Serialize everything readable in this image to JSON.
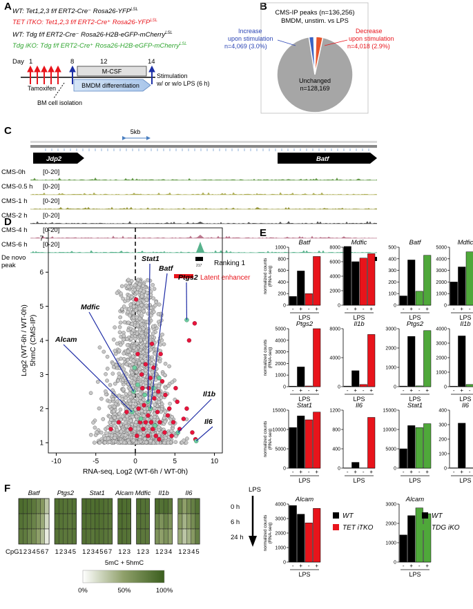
{
  "panel_labels": [
    "A",
    "B",
    "C",
    "D",
    "E",
    "F"
  ],
  "panelA": {
    "genotypes": [
      {
        "text": "WT: Tet1,2,3 f/f ERT2-Cre⁻ Rosa26-YFP",
        "sup": "LSL",
        "color": "#000000"
      },
      {
        "text": "TET iTKO: Tet1,2,3 f/f ERT2-Cre⁺ Rosa26-YFP",
        "sup": "LSL",
        "color": "#e8141b"
      },
      {
        "text": "WT: Tdg f/f ERT2-Cre⁻ Rosa26-H2B-eGFP-mCherry",
        "sup": "LSL",
        "color": "#000000"
      },
      {
        "text": "Tdg iKO: Tdg f/f ERT2-Cre⁺ Rosa26-H2B-eGFP-mCherry",
        "sup": "LSL",
        "color": "#2fa52f"
      }
    ],
    "day_label": "Day",
    "days": [
      "1",
      "8",
      "12",
      "14"
    ],
    "tamoxifen": "Tamoxifen",
    "mcsf": "M-CSF",
    "bmdm": "BMDM differentiation",
    "stimulation_line1": "Stimulation",
    "stimulation_line2": "w/ or w/o LPS (6 h)",
    "bm_isolation": "BM cell isolation"
  },
  "panelB": {
    "title_line1": "CMS-IP peaks (n=136,256)",
    "title_line2": "BMDM, unstim. vs LPS",
    "increase_line1": "Increase",
    "increase_line2": "upon stimulation",
    "increase_line3": "n=4,069 (3.0%)",
    "decrease_line1": "Decrease",
    "decrease_line2": "upon stimulation",
    "decrease_line3": "n=4,018 (2.9%)",
    "unchanged_line1": "Unchanged",
    "unchanged_line2": "n=128,169",
    "colors": {
      "increase": "#3a63c4",
      "decrease": "#e8542a",
      "unchanged": "#a6a6a6"
    }
  },
  "panelC": {
    "scale": "5kb",
    "genes": [
      "Jdp2",
      "Batf"
    ],
    "tracks": [
      {
        "name": "CMS-0h",
        "range": "[0-20]",
        "color": "#4a8a2a"
      },
      {
        "name": "CMS-0.5 h",
        "range": "[0-20]",
        "color": "#a0a038"
      },
      {
        "name": "CMS-1 h",
        "range": "[0-20]",
        "color": "#8a8a20"
      },
      {
        "name": "CMS-2 h",
        "range": "[0-20]",
        "color": "#333333"
      },
      {
        "name": "CMS-4 h",
        "range": "[0-20]",
        "color": "#b0607a"
      },
      {
        "name": "CMS-6 h",
        "range": "[0-20]",
        "color": "#3aa578"
      }
    ],
    "denovo_line1": "De novo",
    "denovo_line2": "peak",
    "peak_id": "217",
    "ranking": "Ranking 1",
    "latent": "Latent enhancer"
  },
  "chart_data": [
    {
      "type": "scatter",
      "panel": "D",
      "xlabel": "RNA-seq, Log2 (WT-6h / WT-0h)",
      "ylabel_line1": "Log2 (WT-6h / WT-0h)",
      "ylabel_line2": "5hmC (CMS-IP)",
      "xlim": [
        -11,
        11
      ],
      "ylim": [
        0.7,
        7.3
      ],
      "xticks": [
        "-10",
        "-5",
        "0",
        "5",
        "10"
      ],
      "yticks": [
        "1",
        "2",
        "3",
        "4",
        "5",
        "6",
        "7"
      ],
      "highlighted_genes": [
        {
          "name": "Stat1",
          "x": 1.6,
          "y": 2.2
        },
        {
          "name": "Batf",
          "x": 1.9,
          "y": 2.0
        },
        {
          "name": "Ptgs2",
          "x": 6.5,
          "y": 4.6
        },
        {
          "name": "Mdfic",
          "x": -0.2,
          "y": 2.5
        },
        {
          "name": "Alcam",
          "x": -0.4,
          "y": 1.9
        },
        {
          "name": "Il1b",
          "x": 5.4,
          "y": 1.3
        },
        {
          "name": "Il6",
          "x": 7.7,
          "y": 1.05
        }
      ],
      "red_points": [
        [
          0.6,
          1.6
        ],
        [
          1.1,
          2.1
        ],
        [
          1.6,
          1.8
        ],
        [
          2.2,
          1.4
        ],
        [
          2.8,
          1.9
        ],
        [
          0.9,
          2.6
        ],
        [
          1.9,
          2.9
        ],
        [
          2.4,
          2.3
        ],
        [
          3.1,
          1.6
        ],
        [
          3.8,
          2.4
        ],
        [
          4.1,
          1.8
        ],
        [
          5.1,
          2.6
        ],
        [
          4.6,
          1.2
        ],
        [
          6.1,
          1.7
        ],
        [
          7.2,
          1.3
        ],
        [
          7.6,
          1.1
        ],
        [
          1.3,
          3.3
        ],
        [
          2.1,
          3.9
        ],
        [
          3.2,
          3.6
        ],
        [
          6.8,
          4.0
        ],
        [
          0.4,
          2.0
        ],
        [
          1.6,
          1.2
        ],
        [
          2.6,
          1.2
        ],
        [
          3.4,
          2.8
        ],
        [
          5.6,
          1.4
        ],
        [
          -0.6,
          1.4
        ],
        [
          -1.1,
          1.9
        ],
        [
          -3.1,
          1.4
        ],
        [
          -2.1,
          1.6
        ],
        [
          0.2,
          1.2
        ],
        [
          1.0,
          1.4
        ],
        [
          1.3,
          1.6
        ],
        [
          2.0,
          1.6
        ],
        [
          2.9,
          2.5
        ],
        [
          4.3,
          2.0
        ],
        [
          3.7,
          1.3
        ],
        [
          0.8,
          3.0
        ],
        [
          2.3,
          3.2
        ],
        [
          6.5,
          2.0
        ],
        [
          7.5,
          4.5
        ],
        [
          0.1,
          5.2
        ],
        [
          0.3,
          3.6
        ],
        [
          1.7,
          2.6
        ],
        [
          3.0,
          1.1
        ],
        [
          4.8,
          1.6
        ],
        [
          5.3,
          2.2
        ]
      ],
      "green_points": [
        [
          1.6,
          2.2
        ],
        [
          1.9,
          2.0
        ],
        [
          6.5,
          4.6
        ],
        [
          -0.2,
          2.5
        ],
        [
          -0.4,
          1.9
        ],
        [
          5.4,
          1.3
        ],
        [
          7.7,
          1.05
        ],
        [
          0.3,
          2.7
        ],
        [
          2.3,
          2.6
        ],
        [
          3.0,
          2.9
        ],
        [
          -0.1,
          3.2
        ],
        [
          0.7,
          1.7
        ],
        [
          1.2,
          2.4
        ],
        [
          2.5,
          1.5
        ]
      ]
    },
    {
      "type": "bar",
      "panel": "E",
      "ylabel_line1": "normalized counts",
      "ylabel_line2": "(RNA-seq)",
      "xlabel": "LPS",
      "categories": [
        "-",
        "+",
        "-",
        "+"
      ],
      "legend_tet": [
        {
          "name": "WT",
          "color": "#000000"
        },
        {
          "name": "TET iTKO",
          "color": "#e8141b"
        }
      ],
      "legend_tdg": [
        {
          "name": "WT",
          "color": "#000000"
        },
        {
          "name": "TDG iKO",
          "color": "#4fa83a"
        }
      ],
      "subplots": [
        {
          "gene": "Batf",
          "ymax": 1000,
          "yticks": [
            "0",
            "200",
            "400",
            "600",
            "800",
            "1000"
          ],
          "colors": [
            "#000000",
            "#000000",
            "#e8141b",
            "#e8141b"
          ],
          "values": [
            150,
            590,
            200,
            840
          ]
        },
        {
          "gene": "Mdfic",
          "ymax": 8000,
          "yticks": [
            "0",
            "2000",
            "4000",
            "6000",
            "8000"
          ],
          "colors": [
            "#000000",
            "#000000",
            "#e8141b",
            "#e8141b"
          ],
          "values": [
            8100,
            6000,
            6500,
            7100
          ]
        },
        {
          "gene": "Batf",
          "ymax": 500,
          "yticks": [
            "0",
            "100",
            "200",
            "300",
            "400",
            "500"
          ],
          "colors": [
            "#000000",
            "#000000",
            "#4fa83a",
            "#4fa83a"
          ],
          "values": [
            80,
            390,
            120,
            430
          ]
        },
        {
          "gene": "Mdfic",
          "ymax": 5000,
          "yticks": [
            "0",
            "1000",
            "2000",
            "3000",
            "4000",
            "5000"
          ],
          "colors": [
            "#000000",
            "#000000",
            "#4fa83a",
            "#4fa83a"
          ],
          "values": [
            2000,
            3300,
            4600,
            3900
          ]
        },
        {
          "gene": "Ptgs2",
          "ymax": 5000,
          "yticks": [
            "0",
            "1000",
            "2000",
            "3000",
            "4000",
            "5000"
          ],
          "colors": [
            "#000000",
            "#000000",
            "#e8141b",
            "#e8141b"
          ],
          "values": [
            40,
            1700,
            60,
            5000
          ]
        },
        {
          "gene": "Il1b",
          "ymax": 8000,
          "yticks": [
            "0",
            "4000",
            "8000"
          ],
          "colors": [
            "#000000",
            "#000000",
            "#e8141b",
            "#e8141b"
          ],
          "values": [
            80,
            2200,
            300,
            7200
          ]
        },
        {
          "gene": "Ptgs2",
          "ymax": 3000,
          "yticks": [
            "0",
            "1000",
            "2000",
            "3000"
          ],
          "colors": [
            "#000000",
            "#000000",
            "#4fa83a",
            "#4fa83a"
          ],
          "values": [
            30,
            2600,
            40,
            2900
          ]
        },
        {
          "gene": "Il1b",
          "ymax": 4000,
          "yticks": [
            "0",
            "1000",
            "2000",
            "3000",
            "4000"
          ],
          "colors": [
            "#000000",
            "#000000",
            "#4fa83a",
            "#4fa83a"
          ],
          "values": [
            30,
            3500,
            150,
            3900
          ]
        },
        {
          "gene": "Stat1",
          "ymax": 15000,
          "yticks": [
            "0",
            "5000",
            "10000",
            "15000"
          ],
          "colors": [
            "#000000",
            "#000000",
            "#e8141b",
            "#e8141b"
          ],
          "values": [
            10500,
            13500,
            12500,
            14500
          ]
        },
        {
          "gene": "Il6",
          "ymax": 1200,
          "yticks": [
            "0",
            "400",
            "800",
            "1200"
          ],
          "colors": [
            "#000000",
            "#000000",
            "#e8141b",
            "#e8141b"
          ],
          "values": [
            5,
            120,
            5,
            1050
          ]
        },
        {
          "gene": "Stat1",
          "ymax": 15000,
          "yticks": [
            "0",
            "5000",
            "10000",
            "15000"
          ],
          "colors": [
            "#000000",
            "#000000",
            "#4fa83a",
            "#4fa83a"
          ],
          "values": [
            5000,
            11000,
            10500,
            11500
          ]
        },
        {
          "gene": "Il6",
          "ymax": 400,
          "yticks": [
            "0",
            "100",
            "200",
            "300",
            "400"
          ],
          "colors": [
            "#000000",
            "#000000",
            "#4fa83a",
            "#4fa83a"
          ],
          "values": [
            2,
            310,
            2,
            320
          ]
        },
        {
          "gene": "Alcam",
          "ymax": 4000,
          "yticks": [
            "0",
            "1000",
            "2000",
            "3000",
            "4000"
          ],
          "colors": [
            "#000000",
            "#000000",
            "#e8141b",
            "#e8141b"
          ],
          "values": [
            3900,
            3300,
            2700,
            3700
          ]
        },
        {
          "gene": "Alcam",
          "ymax": 3000,
          "yticks": [
            "0",
            "1000",
            "2000",
            "3000"
          ],
          "colors": [
            "#000000",
            "#000000",
            "#4fa83a",
            "#4fa83a"
          ],
          "values": [
            1400,
            2400,
            2800,
            2500
          ]
        }
      ]
    },
    {
      "type": "heatmap",
      "panel": "F",
      "rows": [
        "0 h",
        "6 h",
        "24 h"
      ],
      "row_axis": "LPS",
      "cpg_label": "CpG",
      "colorbar_title": "5mC + 5hmC",
      "colorbar_ticks": [
        "0%",
        "50%",
        "100%"
      ],
      "genes": [
        {
          "name": "Batf",
          "cpgs": [
            "1",
            "2",
            "3",
            "4",
            "5",
            "6",
            "7"
          ],
          "values": [
            [
              90,
              88,
              85,
              80,
              70,
              55,
              30
            ],
            [
              85,
              82,
              78,
              72,
              60,
              45,
              20
            ],
            [
              80,
              78,
              70,
              65,
              50,
              35,
              10
            ]
          ]
        },
        {
          "name": "Ptgs2",
          "cpgs": [
            "1",
            "2",
            "3",
            "4",
            "5"
          ],
          "values": [
            [
              88,
              86,
              84,
              84,
              85
            ],
            [
              85,
              84,
              82,
              80,
              83
            ],
            [
              84,
              82,
              80,
              80,
              82
            ]
          ]
        },
        {
          "name": "Stat1",
          "cpgs": [
            "1",
            "2",
            "3",
            "4",
            "5",
            "6",
            "7"
          ],
          "values": [
            [
              90,
              90,
              88,
              90,
              88,
              86,
              85
            ],
            [
              88,
              86,
              86,
              88,
              86,
              84,
              83
            ],
            [
              86,
              84,
              82,
              86,
              84,
              82,
              80
            ]
          ]
        },
        {
          "name": "Alcam",
          "cpgs": [
            "1",
            "2",
            "3"
          ],
          "values": [
            [
              90,
              88,
              88
            ],
            [
              88,
              86,
              86
            ],
            [
              86,
              84,
              84
            ]
          ]
        },
        {
          "name": "Mdfic",
          "cpgs": [
            "1",
            "2",
            "3"
          ],
          "values": [
            [
              88,
              85,
              85
            ],
            [
              85,
              83,
              82
            ],
            [
              82,
              80,
              80
            ]
          ]
        },
        {
          "name": "Il1b",
          "cpgs": [
            "1",
            "2",
            "3",
            "4"
          ],
          "values": [
            [
              90,
              85,
              88,
              80
            ],
            [
              70,
              60,
              72,
              60
            ],
            [
              60,
              50,
              60,
              50
            ]
          ]
        },
        {
          "name": "Il6",
          "cpgs": [
            "1",
            "2",
            "3",
            "4",
            "5"
          ],
          "values": [
            [
              70,
              50,
              65,
              75,
              85
            ],
            [
              55,
              40,
              50,
              65,
              80
            ],
            [
              45,
              30,
              40,
              55,
              75
            ]
          ]
        }
      ]
    }
  ]
}
